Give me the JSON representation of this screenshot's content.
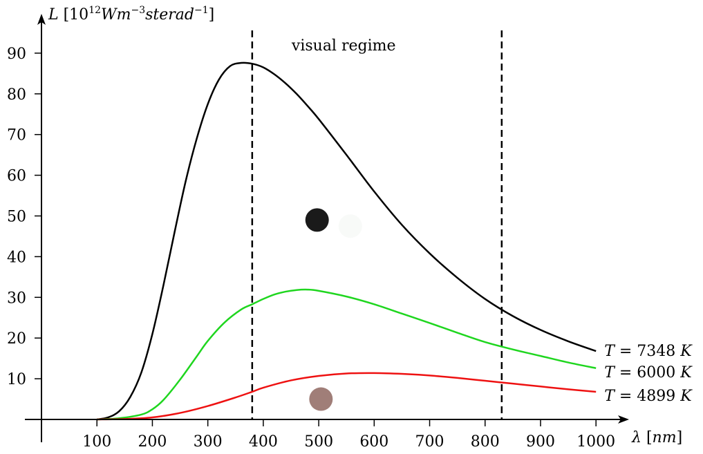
{
  "chart_data": {
    "type": "line",
    "ylabel": {
      "symbol": "L",
      "prefix": " [10",
      "exp1": "12",
      "unit1": "Wm",
      "exp2": "−3",
      "unit2": "sterad",
      "exp3": "−1",
      "suffix": "]"
    },
    "xlabel": {
      "symbol": "λ",
      "open": " [",
      "unit": "nm",
      "close": "]"
    },
    "xlim": [
      0,
      1050
    ],
    "ylim": [
      0,
      95
    ],
    "x_ticks": [
      100,
      200,
      300,
      400,
      500,
      600,
      700,
      800,
      900,
      1000
    ],
    "y_ticks": [
      10,
      20,
      30,
      40,
      50,
      60,
      70,
      80,
      90
    ],
    "vlines": [
      {
        "x": 380,
        "style": "dashed"
      },
      {
        "x": 830,
        "style": "dashed"
      }
    ],
    "annotation": {
      "text": "visual regime",
      "x": 545,
      "y": 92
    },
    "series": [
      {
        "temp_label": "T = 7348 K",
        "label_parts": [
          "T",
          " = 7348 ",
          "K"
        ],
        "color": "#000000",
        "x": [
          100,
          120,
          140,
          160,
          180,
          200,
          220,
          240,
          260,
          280,
          300,
          320,
          340,
          360,
          380,
          400,
          420,
          440,
          460,
          480,
          500,
          550,
          600,
          650,
          700,
          750,
          800,
          850,
          900,
          950,
          1000
        ],
        "y": [
          0.0,
          0.5,
          2.0,
          5.5,
          11.5,
          21.0,
          33.0,
          46.0,
          58.5,
          69.0,
          77.5,
          83.5,
          86.8,
          87.6,
          87.4,
          86.5,
          84.8,
          82.6,
          80.0,
          77.0,
          73.8,
          65.0,
          56.0,
          47.8,
          40.8,
          34.8,
          29.6,
          25.4,
          22.0,
          19.2,
          16.8
        ]
      },
      {
        "temp_label": "T = 6000 K",
        "label_parts": [
          "T",
          " = 6000 ",
          "K"
        ],
        "color": "#1fd61f",
        "x": [
          100,
          140,
          180,
          200,
          220,
          250,
          280,
          300,
          330,
          360,
          380,
          400,
          420,
          440,
          460,
          480,
          500,
          550,
          600,
          650,
          700,
          750,
          800,
          850,
          900,
          950,
          1000
        ],
        "y": [
          0.0,
          0.3,
          1.2,
          2.5,
          4.8,
          9.8,
          15.5,
          19.3,
          23.8,
          27.0,
          28.3,
          29.6,
          30.7,
          31.4,
          31.8,
          31.9,
          31.6,
          30.2,
          28.3,
          26.0,
          23.7,
          21.3,
          19.0,
          17.2,
          15.6,
          14.0,
          12.6
        ]
      },
      {
        "temp_label": "T = 4899 K",
        "label_parts": [
          "T",
          " = 4899 ",
          "K"
        ],
        "color": "#ee1111",
        "x": [
          100,
          150,
          200,
          250,
          300,
          350,
          380,
          400,
          450,
          500,
          550,
          600,
          650,
          700,
          750,
          800,
          850,
          900,
          950,
          1000
        ],
        "y": [
          0.0,
          0.1,
          0.5,
          1.6,
          3.3,
          5.4,
          6.8,
          7.8,
          9.6,
          10.7,
          11.3,
          11.4,
          11.2,
          10.8,
          10.2,
          9.5,
          8.8,
          8.1,
          7.4,
          6.8
        ]
      }
    ],
    "markers": [
      {
        "x": 497,
        "y": 49,
        "color": "#1a1a1a"
      },
      {
        "x": 557,
        "y": 47.5,
        "color": "#f8faf8"
      },
      {
        "x": 504,
        "y": 5,
        "color": "#a07e78"
      }
    ]
  }
}
